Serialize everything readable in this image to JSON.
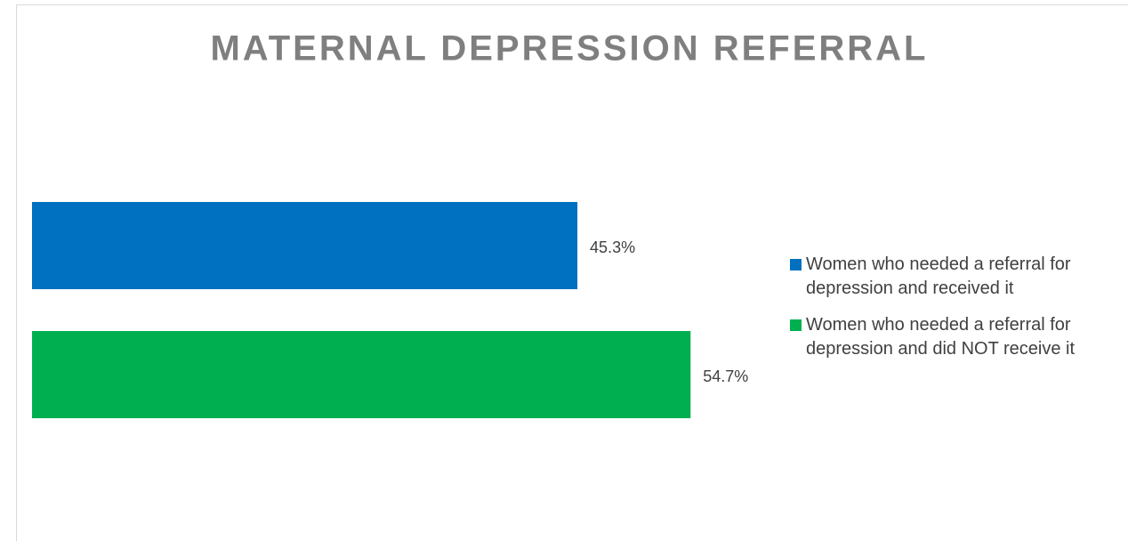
{
  "chart_data": {
    "type": "bar",
    "orientation": "horizontal",
    "title": "MATERNAL DEPRESSION REFERRAL",
    "categories": [
      null
    ],
    "series": [
      {
        "name": "Women who needed a referral for depression and received it",
        "color": "#0070c0",
        "values": [
          45.3
        ],
        "value_labels": [
          "45.3%"
        ]
      },
      {
        "name": "Women who needed a referral for depression and did NOT receive it",
        "color": "#00b050",
        "values": [
          54.7
        ],
        "value_labels": [
          "54.7%"
        ]
      }
    ],
    "xlim": [
      0,
      60
    ],
    "legend": "right",
    "grid": false
  }
}
